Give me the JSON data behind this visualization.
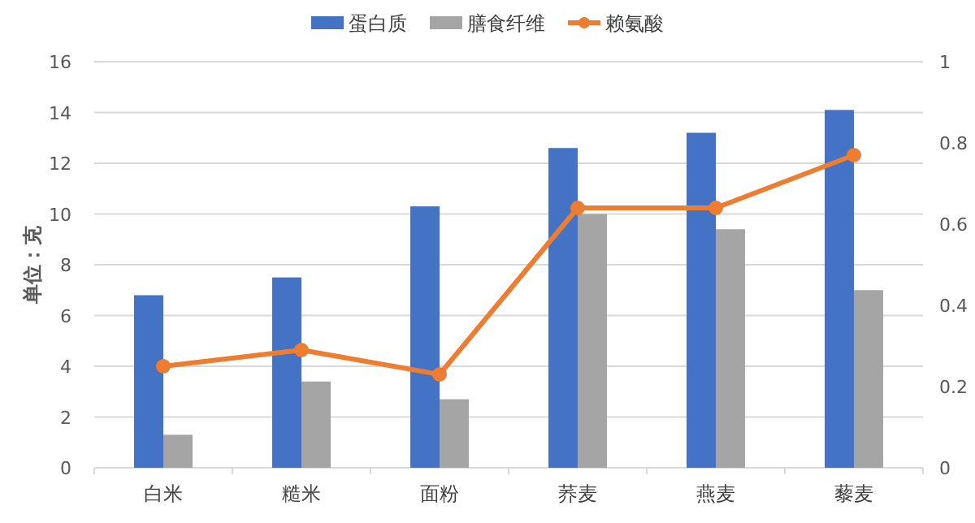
{
  "chart_data": {
    "type": "bar",
    "ylabel": "单位：克",
    "categories": [
      "白米",
      "糙米",
      "面粉",
      "荞麦",
      "燕麦",
      "藜麦"
    ],
    "series": [
      {
        "name": "蛋白质",
        "color": "#4472c4",
        "values": [
          6.8,
          7.5,
          10.3,
          12.6,
          13.2,
          14.1
        ]
      },
      {
        "name": "膳食纤维",
        "color": "#a5a5a5",
        "values": [
          1.3,
          3.4,
          2.7,
          10.0,
          9.4,
          7.0
        ]
      },
      {
        "name": "赖氨酸",
        "type": "line",
        "axis": "y2",
        "color": "#ed7d31",
        "marker": "circle",
        "values": [
          0.25,
          0.29,
          0.23,
          0.64,
          0.64,
          0.77
        ]
      }
    ],
    "ylim": [
      0,
      16
    ],
    "yticks": [
      0,
      2,
      4,
      6,
      8,
      10,
      12,
      14,
      16
    ],
    "y2lim": [
      0,
      1
    ],
    "y2ticks": [
      0,
      0.2,
      0.4,
      0.6,
      0.8,
      1
    ],
    "grid": "y",
    "legend": "top"
  }
}
